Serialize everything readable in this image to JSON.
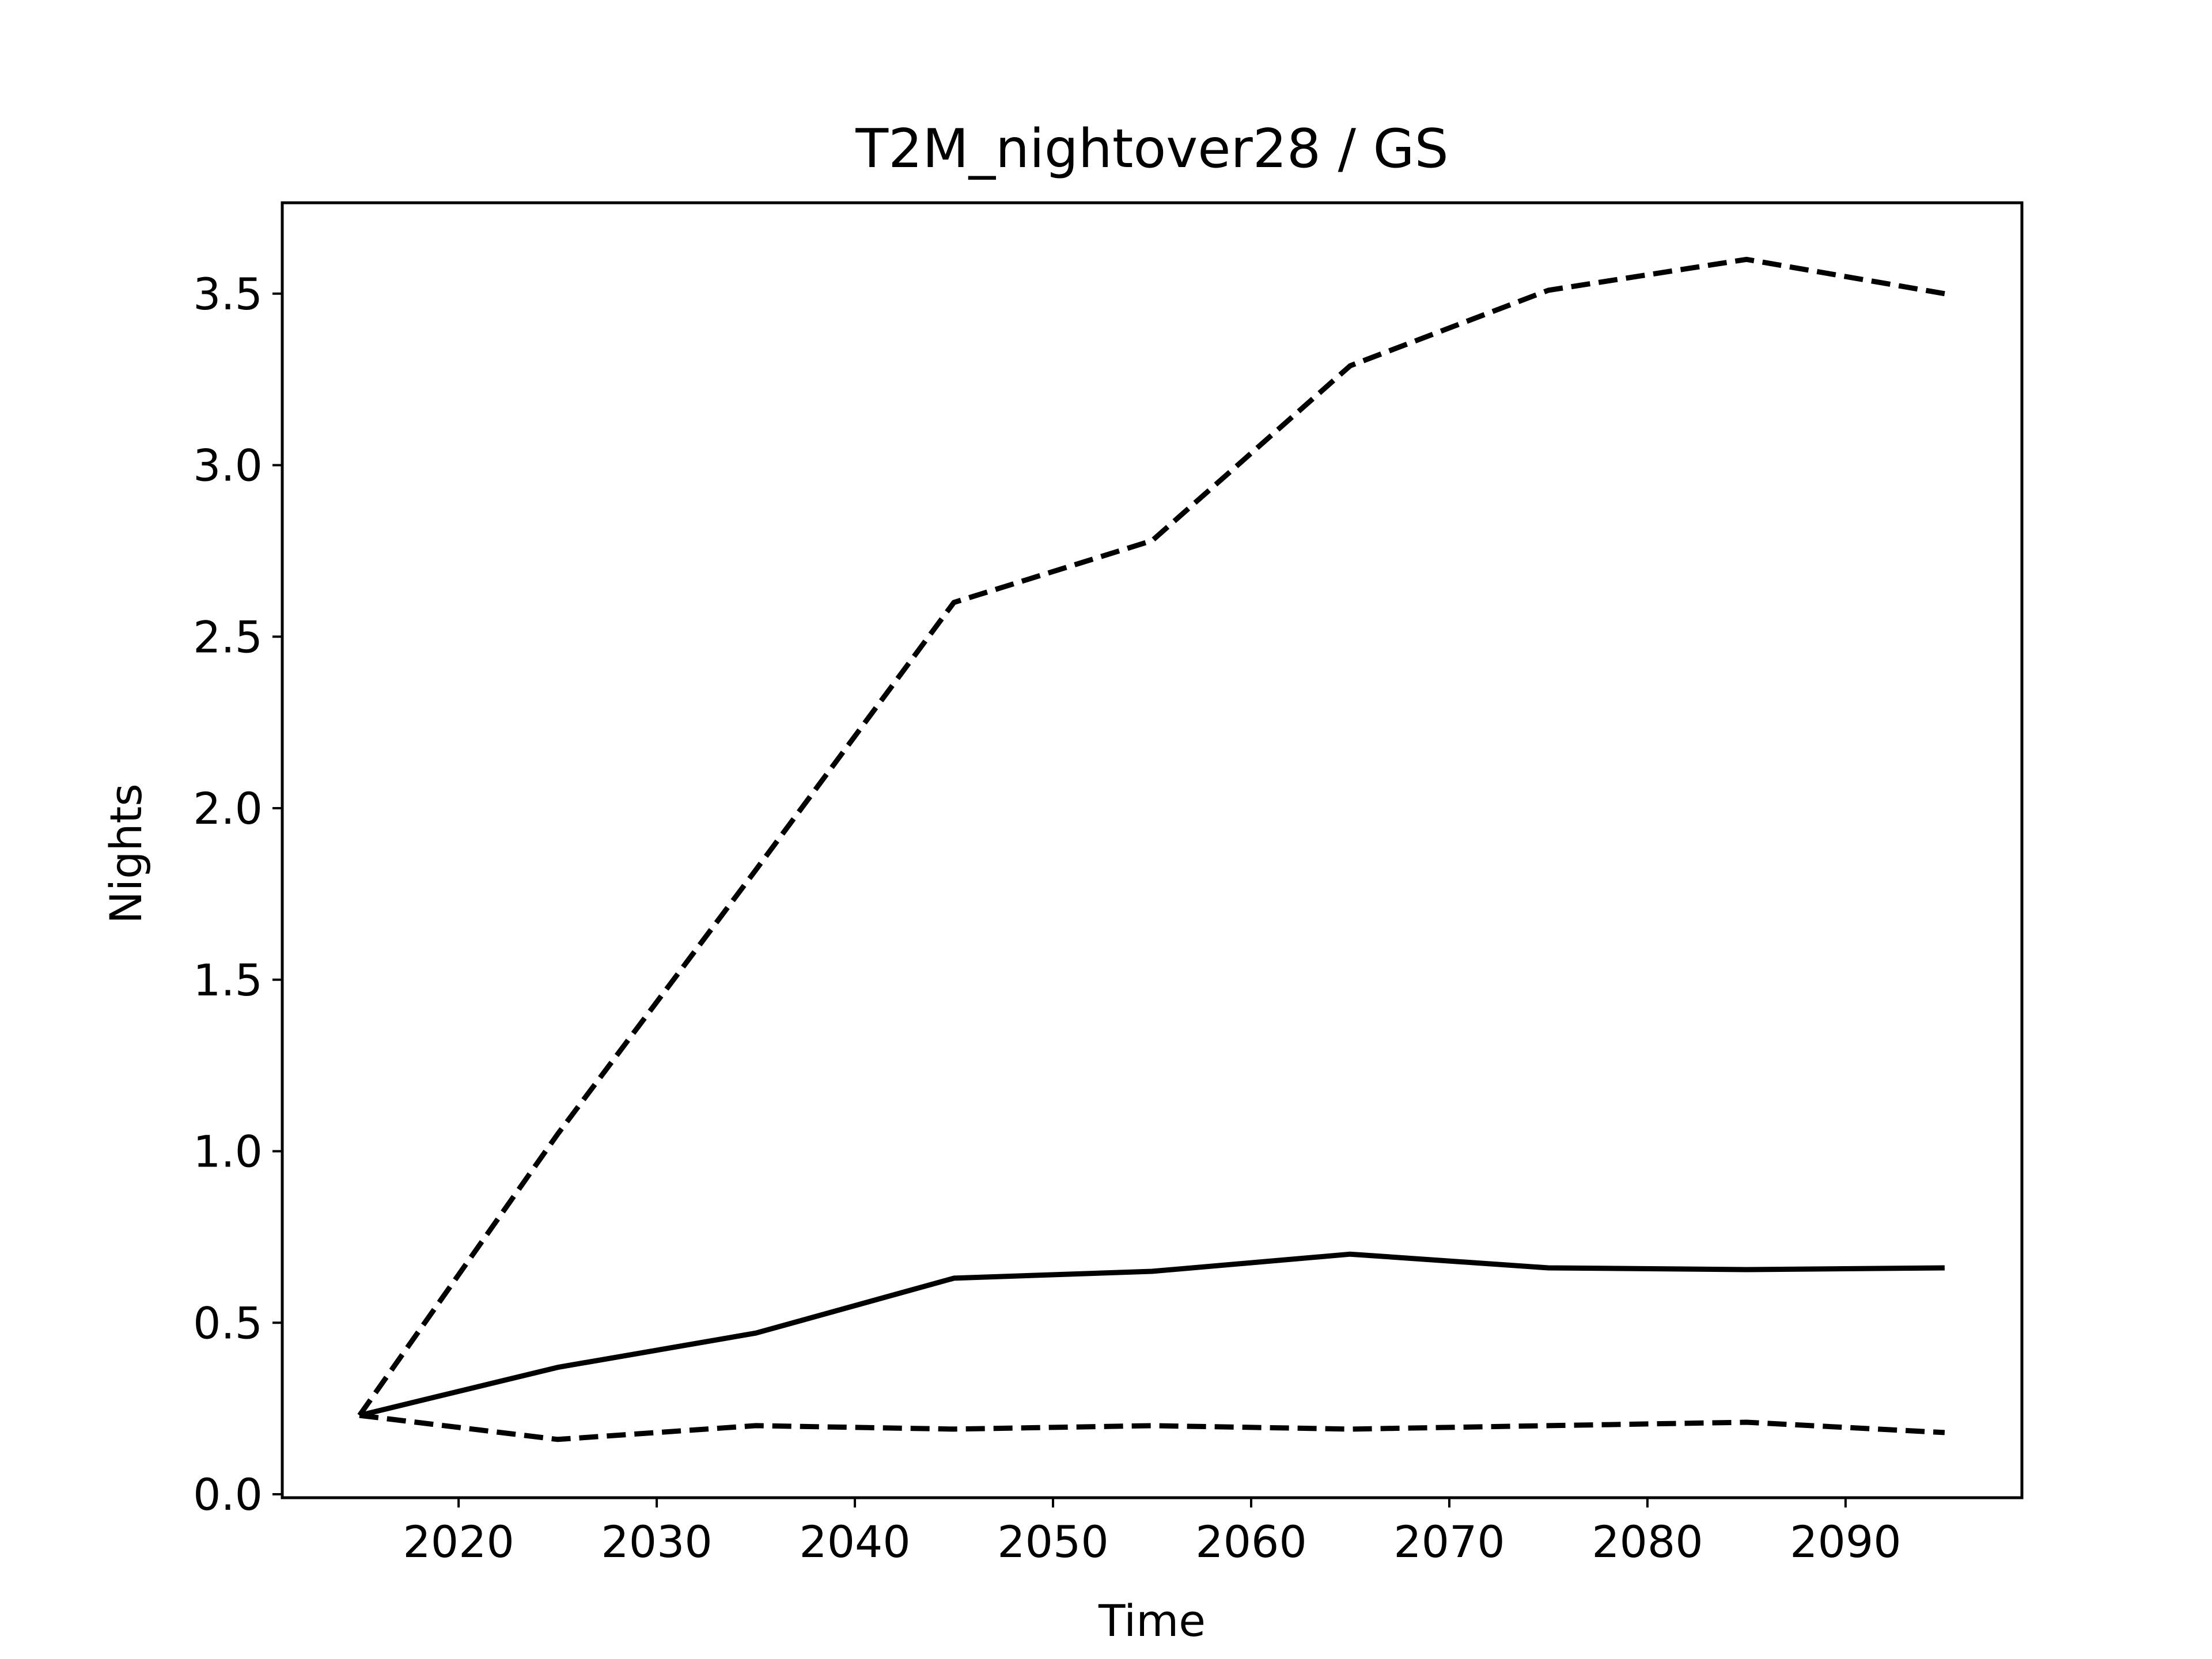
{
  "chart_data": {
    "type": "line",
    "title": "T2M_nightover28 / GS",
    "xlabel": "Time",
    "ylabel": "Nights",
    "xlim": [
      2011.1,
      2098.9
    ],
    "ylim": [
      -0.01,
      3.765
    ],
    "xticks": [
      2020,
      2030,
      2040,
      2050,
      2060,
      2070,
      2080,
      2090
    ],
    "yticks": [
      0.0,
      0.5,
      1.0,
      1.5,
      2.0,
      2.5,
      3.0,
      3.5
    ],
    "ytick_labels": [
      "0.0",
      "0.5",
      "1.0",
      "1.5",
      "2.0",
      "2.5",
      "3.0",
      "3.5"
    ],
    "grid": false,
    "legend": "none",
    "x": [
      2015,
      2025,
      2035,
      2045,
      2055,
      2065,
      2075,
      2085,
      2095
    ],
    "series": [
      {
        "style": "solid",
        "color": "#000000",
        "values": [
          0.23,
          0.37,
          0.47,
          0.63,
          0.65,
          0.7,
          0.66,
          0.655,
          0.66
        ]
      },
      {
        "style": "dashed",
        "color": "#000000",
        "values": [
          0.23,
          1.05,
          1.82,
          2.6,
          2.78,
          3.29,
          3.51,
          3.6,
          3.5
        ]
      },
      {
        "style": "dashed",
        "color": "#000000",
        "values": [
          0.23,
          0.16,
          0.2,
          0.19,
          0.2,
          0.19,
          0.2,
          0.21,
          0.18
        ]
      }
    ]
  }
}
